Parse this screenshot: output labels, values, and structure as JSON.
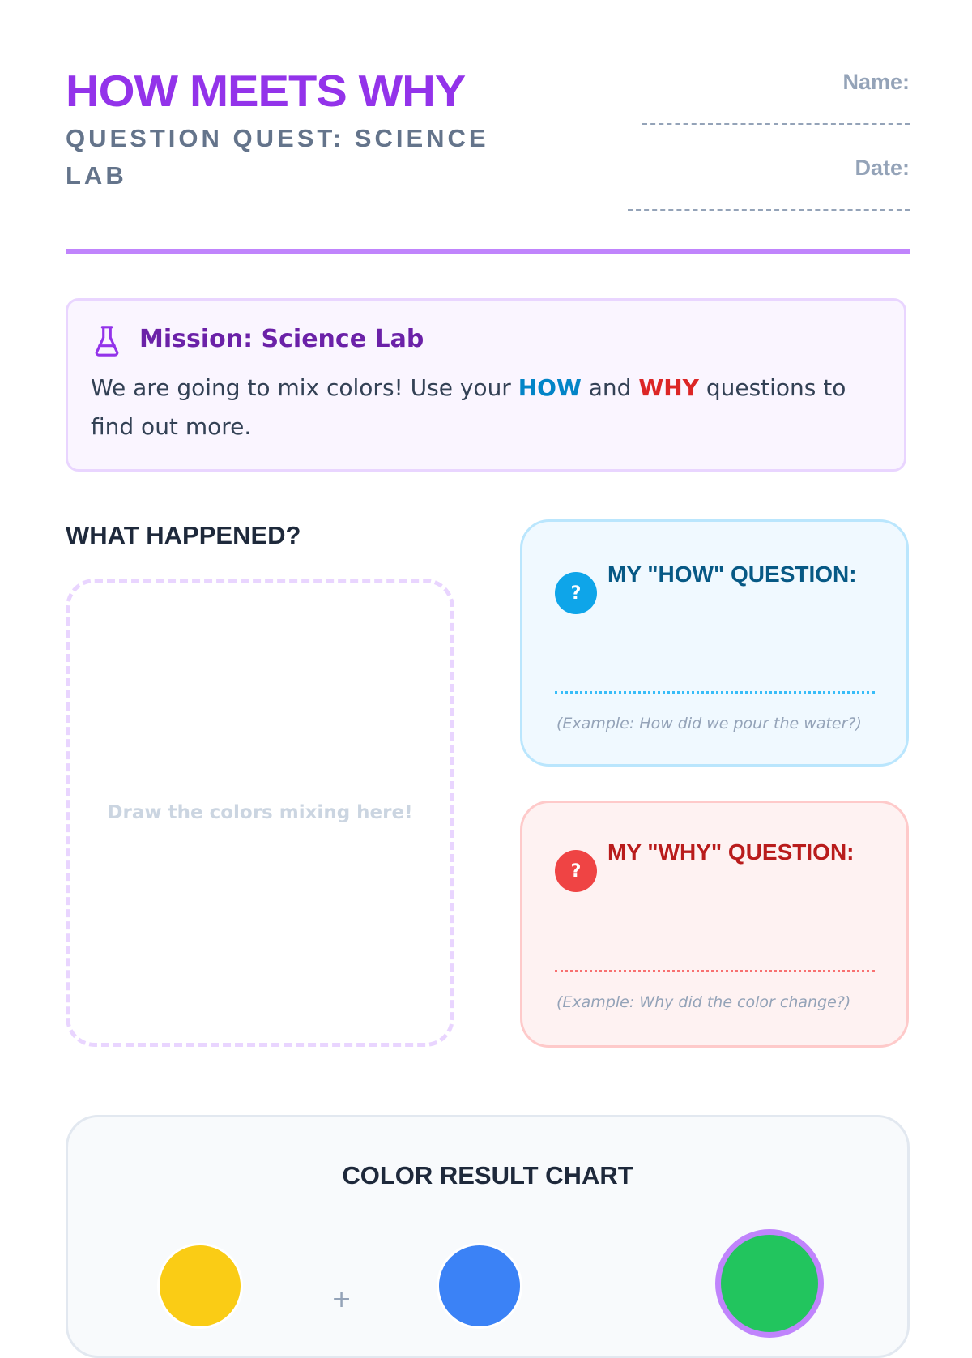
{
  "header": {
    "title": "HOW MEETS WHY",
    "subtitle": "QUESTION QUEST: SCIENCE LAB",
    "name_label": "Name:",
    "date_label": "Date:"
  },
  "mission": {
    "icon": "flask-icon",
    "title": "Mission: Science Lab",
    "text_before": "We are going to mix colors! Use your ",
    "how": "HOW",
    "text_mid": " and ",
    "why": "WHY",
    "text_after": " questions to find out more."
  },
  "what_happened": {
    "heading": "WHAT HAPPENED?",
    "draw_hint": "Draw the colors mixing here!"
  },
  "how_box": {
    "icon": "question-icon",
    "badge": "?",
    "title": "MY \"HOW\" QUESTION:",
    "example": "(Example: How did we pour the water?)",
    "accent": "#0ea5e9"
  },
  "why_box": {
    "icon": "question-icon",
    "badge": "?",
    "title": "MY \"WHY\" QUESTION:",
    "example": "(Example: Why did the color change?)",
    "accent": "#ef4444"
  },
  "chart": {
    "title": "COLOR RESULT CHART",
    "plus": "+",
    "colors": [
      "#facc15",
      "#3b82f6",
      "#22c55e"
    ],
    "result_ring": "#c084fc"
  }
}
